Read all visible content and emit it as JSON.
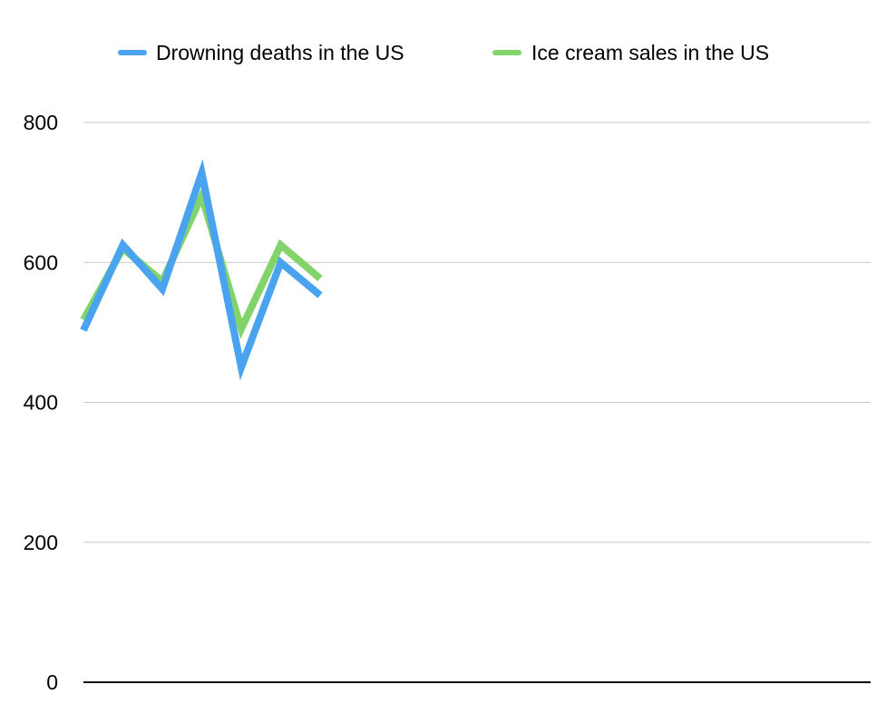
{
  "chart_data": {
    "type": "line",
    "title": "",
    "xlabel": "",
    "ylabel": "",
    "ylim": [
      0,
      800
    ],
    "yticks": [
      "0",
      "200",
      "400",
      "600",
      "800"
    ],
    "ytick_values": [
      0,
      200,
      400,
      600,
      800
    ],
    "grid": true,
    "legend_position": "top",
    "x": [
      1,
      2,
      3,
      4,
      5,
      6,
      7
    ],
    "series": [
      {
        "name": "Ice cream sales in the US",
        "color": "#82d36a",
        "values": [
          518,
          620,
          573,
          695,
          505,
          625,
          577
        ]
      },
      {
        "name": "Drowning deaths in the US",
        "color": "#4aa3ee",
        "values": [
          503,
          625,
          562,
          728,
          450,
          600,
          553
        ]
      }
    ],
    "legend": [
      {
        "label": "Drowning deaths in the US",
        "color": "#4aa3ee"
      },
      {
        "label": "Ice cream sales in the US",
        "color": "#82d36a"
      }
    ]
  }
}
